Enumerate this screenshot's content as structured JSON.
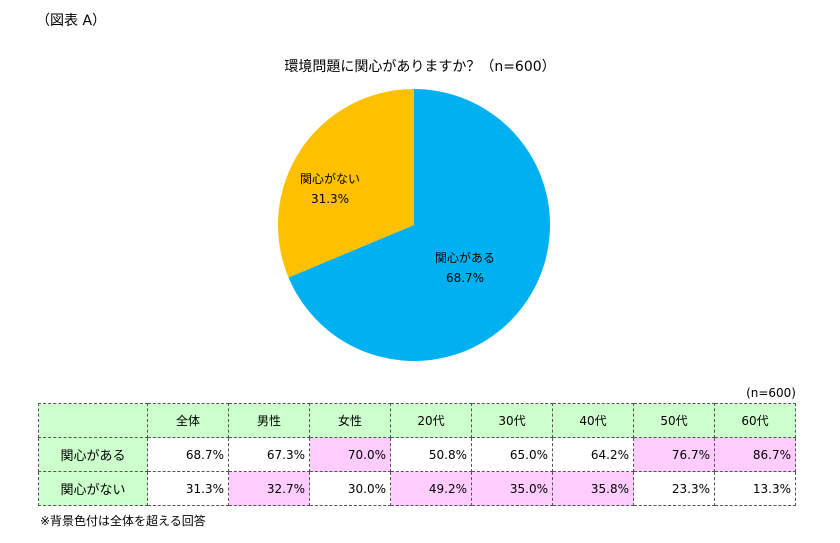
{
  "figure_label": "（図表 A）",
  "chart_data": {
    "type": "pie",
    "title": "環境問題に関心がありますか？（n=600）",
    "slices": [
      {
        "label": "関心がある",
        "value": 68.7,
        "display": "68.7%",
        "color": "#00B0F0"
      },
      {
        "label": "関心がない",
        "value": 31.3,
        "display": "31.3%",
        "color": "#FFC000"
      }
    ]
  },
  "table": {
    "note": "(n=600)",
    "columns": [
      "全体",
      "男性",
      "女性",
      "20代",
      "30代",
      "40代",
      "50代",
      "60代"
    ],
    "rows": [
      {
        "label": "関心がある",
        "values": [
          "68.7%",
          "67.3%",
          "70.0%",
          "50.8%",
          "65.0%",
          "64.2%",
          "76.7%",
          "86.7%"
        ],
        "highlight": [
          false,
          false,
          true,
          false,
          false,
          false,
          true,
          true
        ]
      },
      {
        "label": "関心がない",
        "values": [
          "31.3%",
          "32.7%",
          "30.0%",
          "49.2%",
          "35.0%",
          "35.8%",
          "23.3%",
          "13.3%"
        ],
        "highlight": [
          false,
          true,
          false,
          true,
          true,
          true,
          false,
          false
        ]
      }
    ],
    "header_color": "#CCFFCC",
    "highlight_color": "#FFCCFF",
    "footnote": "※背景色付は全体を超える回答"
  }
}
